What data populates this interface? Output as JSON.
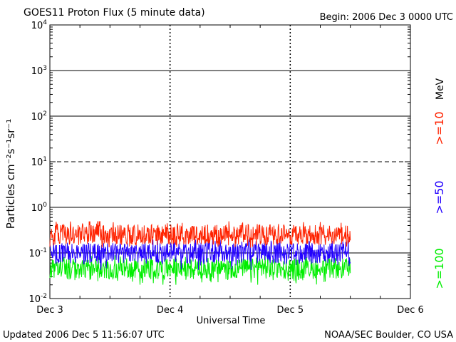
{
  "header": {
    "title": "GOES11 Proton Flux (5 minute data)",
    "begin": "Begin: 2006 Dec 3 0000 UTC"
  },
  "footer": {
    "updated": "Updated 2006 Dec  5 11:56:07 UTC",
    "credit": "NOAA/SEC Boulder, CO USA"
  },
  "colors": {
    "ge10": "#ff2200",
    "ge50": "#2200ff",
    "ge100": "#00ee00",
    "axis": "#000000",
    "background": "#ffffff"
  },
  "chart_data": {
    "type": "line",
    "title": "GOES11 Proton Flux (5 minute data)",
    "xlabel": "Universal Time",
    "ylabel": "Particles cm⁻²s⁻¹sr⁻¹",
    "yscale": "log",
    "ylim": [
      0.01,
      10000
    ],
    "ytick_exponents": [
      -2,
      -1,
      0,
      1,
      2,
      3,
      4
    ],
    "xlim": [
      0,
      3
    ],
    "xticks": [
      {
        "x": 0,
        "label": "Dec 3"
      },
      {
        "x": 1,
        "label": "Dec 4"
      },
      {
        "x": 2,
        "label": "Dec 5"
      },
      {
        "x": 3,
        "label": "Dec 6"
      }
    ],
    "data_end_day": 2.5,
    "reference_lines": [
      {
        "y": 10,
        "style": "dashed"
      },
      {
        "y": 0.1,
        "style": "solid"
      },
      {
        "y": 1,
        "style": "solid"
      },
      {
        "y": 100,
        "style": "solid"
      },
      {
        "y": 1000,
        "style": "solid"
      }
    ],
    "legend_unit": "MeV",
    "series": [
      {
        "name": ">=10",
        "color": "#ff2200",
        "typical": 0.25,
        "min": 0.13,
        "max": 0.5
      },
      {
        "name": ">=50",
        "color": "#2200ff",
        "typical": 0.1,
        "min": 0.04,
        "max": 0.2
      },
      {
        "name": ">=100",
        "color": "#00ee00",
        "typical": 0.045,
        "min": 0.02,
        "max": 0.09
      }
    ]
  }
}
